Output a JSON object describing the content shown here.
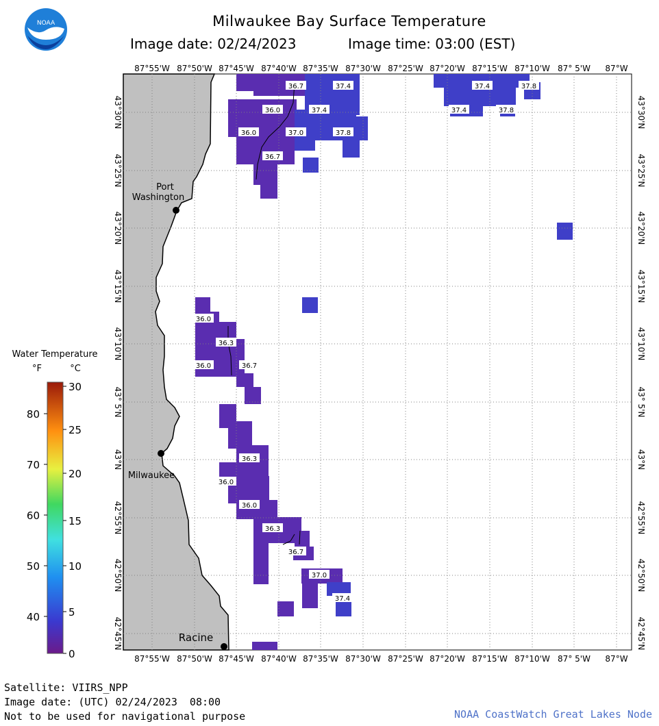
{
  "header": {
    "title": "Milwaukee Bay Surface Temperature",
    "image_date": "Image date: 02/24/2023",
    "image_time": "Image time: 03:00 (EST)"
  },
  "logo": {
    "text": "NOAA"
  },
  "map": {
    "lon_labels": [
      "87°55'W",
      "87°50'W",
      "87°45'W",
      "87°40'W",
      "87°35'W",
      "87°30'W",
      "87°25'W",
      "87°20'W",
      "87°15'W",
      "87°10'W",
      "87° 5'W",
      "87°W"
    ],
    "lat_labels": [
      "43°30'N",
      "43°25'N",
      "43°20'N",
      "43°15'N",
      "43°10'N",
      "43° 5'N",
      "43°N",
      "42°55'N",
      "42°50'N",
      "42°45'N"
    ],
    "cities": [
      {
        "name": "Port",
        "name2": "Washington"
      },
      {
        "name": "Milwaukee"
      },
      {
        "name": "Racine"
      }
    ],
    "temp_labels": [
      "36.7",
      "37.4",
      "37.4",
      "37.8",
      "36.0",
      "37.4",
      "37.4",
      "37.8",
      "36.0",
      "37.0",
      "37.8",
      "36.7",
      "36.0",
      "36.3",
      "36.0",
      "36.7",
      "36.3",
      "36.0",
      "36.0",
      "36.3",
      "36.7",
      "37.0",
      "37.4"
    ],
    "colors": {
      "land": "#c0c0c0",
      "water_cold": "#5a2db0",
      "water_warm": "#3f3fc8",
      "grid": "#808080"
    }
  },
  "legend": {
    "title": "Water Temperature",
    "unit_f": "°F",
    "unit_c": "°C",
    "f_ticks": [
      "80",
      "70",
      "60",
      "50",
      "40"
    ],
    "c_ticks": [
      "30",
      "25",
      "20",
      "15",
      "10",
      "5",
      "0"
    ]
  },
  "footer": {
    "satellite": "Satellite: VIIRS_NPP",
    "utc_date": "Image date: (UTC) 02/24/2023  08:00",
    "disclaimer": "Not to be used for navigational purpose",
    "credit": "NOAA CoastWatch Great Lakes Node"
  }
}
